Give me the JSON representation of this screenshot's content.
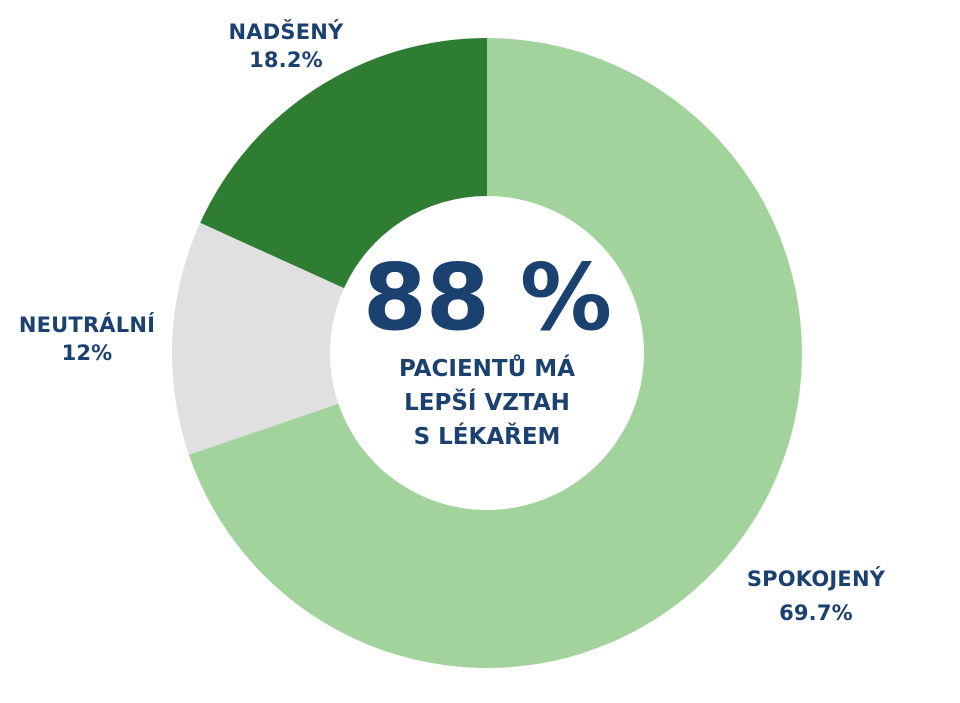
{
  "chart_data": {
    "type": "pie",
    "variant": "donut",
    "title": "",
    "center_text": {
      "value": "88 %",
      "caption": [
        "PACIENTŮ MÁ",
        "LEPŠÍ VZTAH",
        "S LÉKAŘEM"
      ]
    },
    "categories": [
      "SPOKOJENÝ",
      "NEUTRÁLNÍ",
      "NADŠENÝ"
    ],
    "values": [
      69.7,
      12,
      18.2
    ],
    "value_labels": [
      "69.7%",
      "12%",
      "18.2%"
    ],
    "colors": [
      "#a3d39c",
      "#e0e0e0",
      "#2e7d32"
    ],
    "start_angle_deg": 0,
    "direction": "clockwise",
    "legend": "none",
    "label_color": "#1b4170"
  },
  "labels": {
    "nadseny": {
      "name": "NADŠENÝ",
      "value": "18.2%"
    },
    "neutralni": {
      "name": "NEUTRÁLNÍ",
      "value": "12%"
    },
    "spokojeny": {
      "name": "SPOKOJENÝ",
      "value": "69.7%"
    }
  },
  "center": {
    "big": "88 %",
    "line1": "PACIENTŮ MÁ",
    "line2": "LEPŠÍ VZTAH",
    "line3": "S LÉKAŘEM"
  }
}
